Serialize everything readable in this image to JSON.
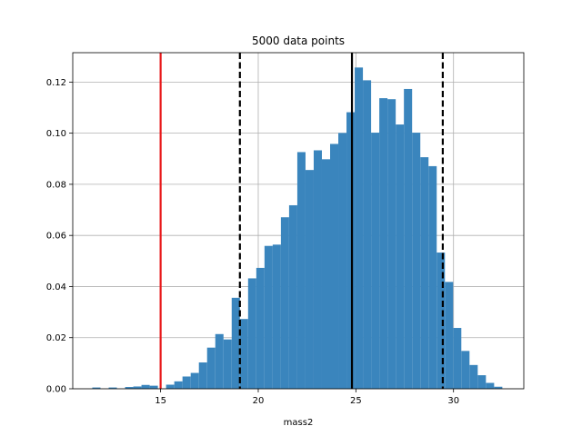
{
  "chart_data": {
    "type": "histogram",
    "title": "5000 data points",
    "xlabel": "mass2",
    "ylabel": "",
    "xlim": [
      10.5,
      33.6
    ],
    "ylim": [
      0,
      0.1315
    ],
    "grid": true,
    "bar_color": "#3a85bd",
    "x_ticks": [
      15,
      20,
      25,
      30
    ],
    "x_tick_labels": [
      "15",
      "20",
      "25",
      "30"
    ],
    "y_ticks": [
      0.0,
      0.02,
      0.04,
      0.06,
      0.08,
      0.1,
      0.12
    ],
    "y_tick_labels": [
      "0.00",
      "0.02",
      "0.04",
      "0.06",
      "0.08",
      "0.10",
      "0.12"
    ],
    "bin_edges": [
      11.5,
      11.92,
      12.34,
      12.76,
      13.18,
      13.6,
      14.02,
      14.44,
      14.86,
      15.28,
      15.7,
      16.12,
      16.54,
      16.96,
      17.38,
      17.8,
      18.22,
      18.64,
      19.06,
      19.48,
      19.9,
      20.32,
      20.74,
      21.16,
      21.58,
      22.0,
      22.42,
      22.84,
      23.26,
      23.68,
      24.1,
      24.52,
      24.94,
      25.36,
      25.78,
      26.2,
      26.62,
      27.04,
      27.46,
      27.88,
      28.3,
      28.72,
      29.14,
      29.56,
      29.98,
      30.4,
      30.82,
      31.24,
      31.66,
      32.08,
      32.5
    ],
    "values": [
      0.0005,
      0.0,
      0.0005,
      0.0,
      0.0007,
      0.0009,
      0.0015,
      0.0012,
      0.0,
      0.0016,
      0.0029,
      0.0048,
      0.0062,
      0.0103,
      0.0161,
      0.0214,
      0.0193,
      0.0356,
      0.0273,
      0.0432,
      0.0473,
      0.0559,
      0.0564,
      0.0671,
      0.0718,
      0.0926,
      0.0856,
      0.0933,
      0.0898,
      0.0958,
      0.1001,
      0.1082,
      0.1257,
      0.1207,
      0.1002,
      0.1137,
      0.1133,
      0.1034,
      0.1173,
      0.1002,
      0.0906,
      0.0871,
      0.0533,
      0.0418,
      0.0238,
      0.0148,
      0.0093,
      0.0053,
      0.0023,
      0.0008
    ],
    "vertical_lines": [
      {
        "x": 15.0,
        "color": "#e8191b",
        "style": "solid"
      },
      {
        "x": 19.06,
        "color": "#000000",
        "style": "dashed"
      },
      {
        "x": 24.8,
        "color": "#000000",
        "style": "solid"
      },
      {
        "x": 29.45,
        "color": "#000000",
        "style": "dashed"
      }
    ]
  }
}
